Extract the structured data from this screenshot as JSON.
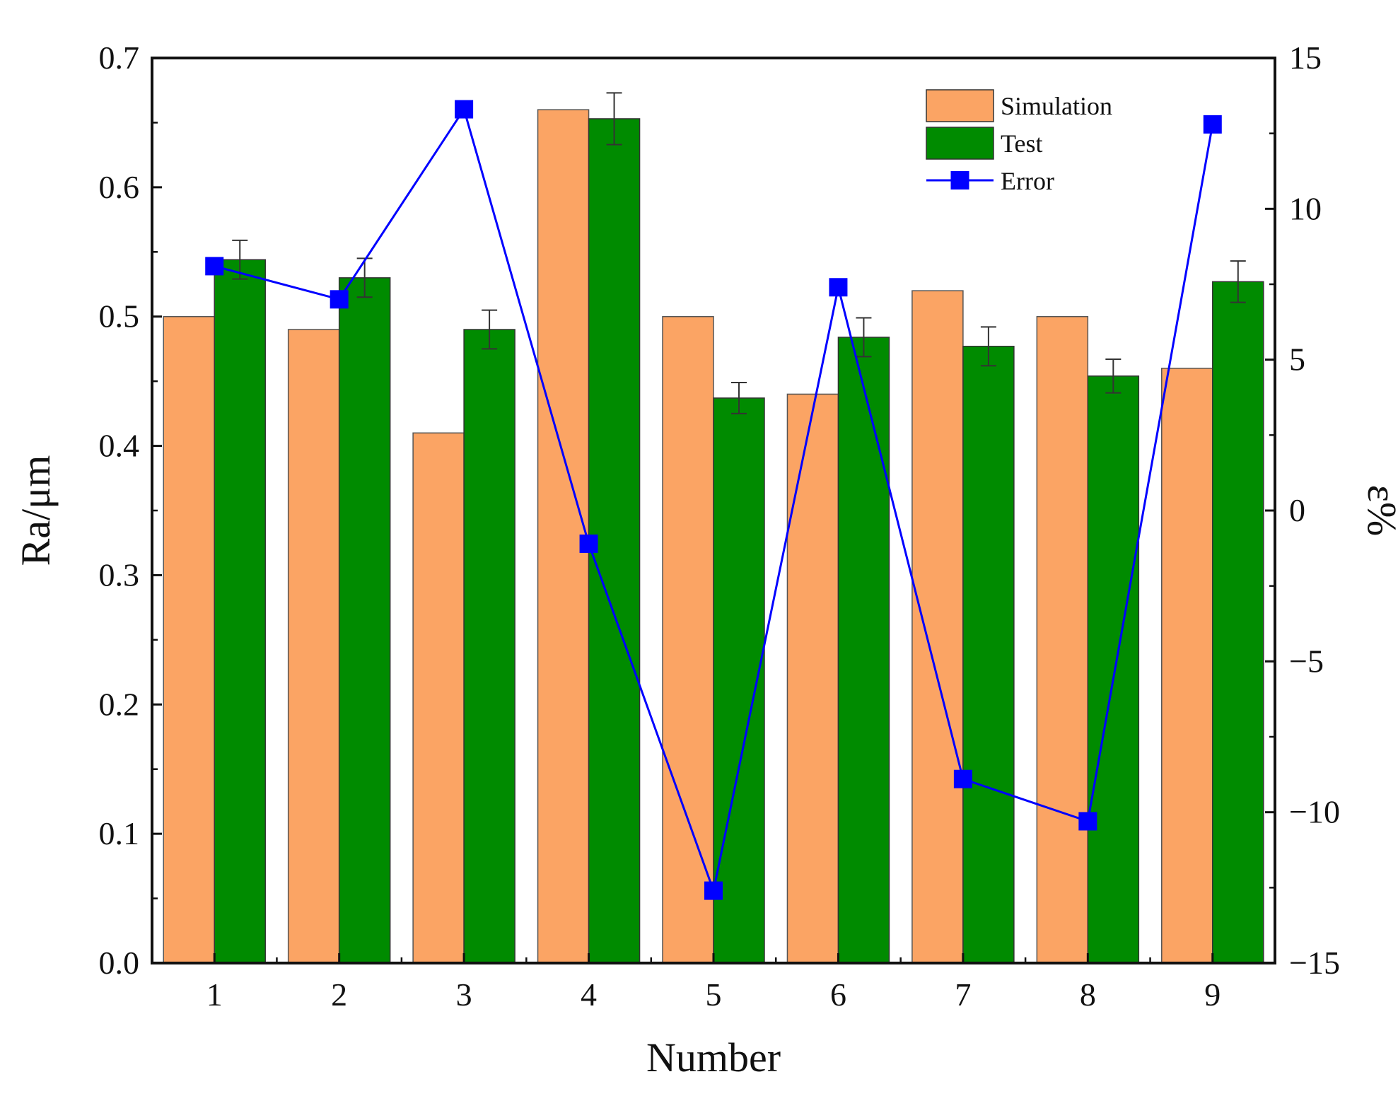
{
  "chart_data": {
    "type": "bar",
    "title": "",
    "xlabel": "Number",
    "ylabel": "Ra/μm",
    "y2label": "ε%",
    "categories": [
      "1",
      "2",
      "3",
      "4",
      "5",
      "6",
      "7",
      "8",
      "9"
    ],
    "ylim": [
      0,
      0.7
    ],
    "yticks": [
      "0.0",
      "0.1",
      "0.2",
      "0.3",
      "0.4",
      "0.5",
      "0.6",
      "0.7"
    ],
    "y2lim": [
      -15,
      15
    ],
    "y2ticks": [
      "−15",
      "−10",
      "−5",
      "0",
      "5",
      "10",
      "15"
    ],
    "legend_position": "top-right",
    "series": [
      {
        "name": "Simulation",
        "kind": "bar",
        "axis": "left",
        "color": "#FBA464",
        "values": [
          0.5,
          0.49,
          0.41,
          0.66,
          0.5,
          0.44,
          0.52,
          0.5,
          0.46
        ]
      },
      {
        "name": "Test",
        "kind": "bar",
        "axis": "left",
        "color": "#008B00",
        "values": [
          0.544,
          0.53,
          0.49,
          0.653,
          0.437,
          0.484,
          0.477,
          0.454,
          0.527
        ],
        "error": [
          0.015,
          0.015,
          0.015,
          0.02,
          0.012,
          0.015,
          0.015,
          0.013,
          0.016
        ]
      },
      {
        "name": "Error",
        "kind": "line",
        "axis": "right",
        "color": "#0000FF",
        "values": [
          8.1,
          7.0,
          13.3,
          -1.1,
          -12.6,
          7.4,
          -8.9,
          -10.3,
          12.8
        ]
      }
    ]
  }
}
